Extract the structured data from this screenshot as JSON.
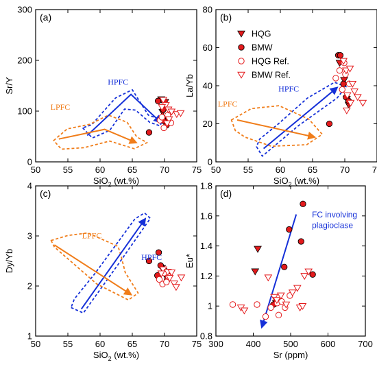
{
  "colors": {
    "red": "#e41a1c",
    "blue": "#1530d8",
    "orange": "#f07d1a",
    "axis": "#000000"
  },
  "legend": {
    "entries": [
      {
        "label": "HQG",
        "marker": "filled-down-triangle"
      },
      {
        "label": "BMW",
        "marker": "filled-circle"
      },
      {
        "label": "HQG Ref.",
        "marker": "open-circle"
      },
      {
        "label": "BMW Ref.",
        "marker": "open-down-triangle"
      }
    ]
  },
  "chart_data": [
    {
      "type": "scatter",
      "panel": "(a)",
      "xlabel": "SiO",
      "xlabel_sub": "2",
      "xlabel_tail": " (wt.%)",
      "ylabel": "Sr/Y",
      "xlim": [
        50,
        75
      ],
      "ylim": [
        0,
        300
      ],
      "xticks": [
        50,
        55,
        60,
        65,
        70,
        75
      ],
      "yticks": [
        0,
        100,
        200,
        300
      ],
      "series": [
        {
          "name": "HQG",
          "marker": "filled-down-triangle",
          "points": [
            [
              69.5,
              123
            ],
            [
              70.1,
              118
            ],
            [
              69.7,
              98
            ],
            [
              70.3,
              86
            ]
          ]
        },
        {
          "name": "BMW",
          "marker": "filled-circle",
          "points": [
            [
              67.6,
              58
            ],
            [
              69.0,
              120
            ],
            [
              69.8,
              103
            ],
            [
              70.0,
              80
            ],
            [
              70.3,
              72
            ],
            [
              70.6,
              86
            ]
          ]
        },
        {
          "name": "HQG Ref.",
          "marker": "open-circle",
          "points": [
            [
              69.3,
              82
            ],
            [
              69.9,
              67
            ],
            [
              70.5,
              92
            ],
            [
              71.0,
              77
            ],
            [
              69.6,
              88
            ]
          ]
        },
        {
          "name": "BMW Ref.",
          "marker": "open-down-triangle",
          "points": [
            [
              69.8,
              122
            ],
            [
              70.2,
              112
            ],
            [
              70.6,
              103
            ],
            [
              71.1,
              99
            ],
            [
              71.9,
              94
            ],
            [
              72.5,
              96
            ],
            [
              70.7,
              84
            ],
            [
              70.4,
              76
            ],
            [
              69.6,
              108
            ]
          ]
        }
      ],
      "annotations": [
        {
          "text": "HPFC",
          "x": 61.2,
          "y": 152,
          "color": "blue"
        },
        {
          "text": "LPFC",
          "x": 52.3,
          "y": 103,
          "color": "orange"
        }
      ],
      "arrows": [
        {
          "color": "blue",
          "path": [
            [
              58,
              52
            ],
            [
              64.8,
              133
            ],
            [
              69.4,
              78
            ]
          ]
        },
        {
          "color": "orange",
          "path": [
            [
              53.6,
              45
            ],
            [
              60.7,
              64
            ],
            [
              65.6,
              38
            ]
          ]
        }
      ],
      "envelopes": [
        {
          "color": "blue",
          "points": [
            [
              57.3,
              67
            ],
            [
              58.8,
              47
            ],
            [
              61.5,
              62
            ],
            [
              63.8,
              104
            ],
            [
              65.5,
              102
            ],
            [
              67.7,
              78
            ],
            [
              69.3,
              71
            ],
            [
              69.7,
              82
            ],
            [
              67.5,
              92
            ],
            [
              65,
              142
            ],
            [
              62.4,
              126
            ],
            [
              60.5,
              99
            ],
            [
              58.7,
              73
            ]
          ]
        },
        {
          "color": "orange",
          "points": [
            [
              52.8,
              42
            ],
            [
              54.9,
              65
            ],
            [
              58.4,
              74
            ],
            [
              61.3,
              92
            ],
            [
              64.2,
              78
            ],
            [
              65.7,
              49
            ],
            [
              67.3,
              38
            ],
            [
              65.3,
              26
            ],
            [
              61.5,
              41
            ],
            [
              57.5,
              28
            ],
            [
              54,
              25
            ]
          ]
        }
      ]
    },
    {
      "type": "scatter",
      "panel": "(b)",
      "xlabel": "SiO",
      "xlabel_sub": "2",
      "xlabel_tail": " (wt.%)",
      "ylabel": "La/Yb",
      "xlim": [
        50,
        75
      ],
      "ylim": [
        0,
        80
      ],
      "xticks": [
        50,
        55,
        60,
        65,
        70,
        75
      ],
      "yticks": [
        0,
        20,
        40,
        60,
        80
      ],
      "series": [
        {
          "name": "HQG",
          "marker": "filled-down-triangle",
          "points": [
            [
              69.2,
              52
            ],
            [
              69.9,
              43
            ],
            [
              70.3,
              33
            ],
            [
              70.6,
              30
            ]
          ]
        },
        {
          "name": "BMW",
          "marker": "filled-circle",
          "points": [
            [
              67.6,
              20
            ],
            [
              69.0,
              56
            ],
            [
              69.3,
              56
            ],
            [
              69.8,
              41
            ],
            [
              70.2,
              34
            ],
            [
              70.6,
              32
            ]
          ]
        },
        {
          "name": "HQG Ref.",
          "marker": "open-circle",
          "points": [
            [
              68.6,
              44
            ],
            [
              69.2,
              48
            ],
            [
              69.6,
              38
            ],
            [
              70.1,
              46
            ],
            [
              70.7,
              41
            ],
            [
              69.9,
              52
            ]
          ]
        },
        {
          "name": "BMW Ref.",
          "marker": "open-down-triangle",
          "points": [
            [
              69.8,
              53
            ],
            [
              70.2,
              48
            ],
            [
              70.8,
              49
            ],
            [
              71.2,
              41
            ],
            [
              71.5,
              37
            ],
            [
              70.4,
              35
            ],
            [
              70.9,
              31
            ],
            [
              70.3,
              27
            ],
            [
              72.0,
              34
            ],
            [
              72.8,
              31
            ]
          ]
        }
      ],
      "annotations": [
        {
          "text": "HPFC",
          "x": 59.7,
          "y": 37,
          "color": "blue"
        },
        {
          "text": "LPFC",
          "x": 50.3,
          "y": 29,
          "color": "orange"
        }
      ],
      "arrows": [
        {
          "color": "blue",
          "path": [
            [
              57.4,
              7
            ],
            [
              68.8,
              39
            ]
          ]
        },
        {
          "color": "orange",
          "path": [
            [
              53.3,
              22
            ],
            [
              65.3,
              13
            ]
          ]
        }
      ],
      "envelopes": [
        {
          "color": "blue",
          "points": [
            [
              56.3,
              8
            ],
            [
              57.2,
              3
            ],
            [
              62.8,
              19
            ],
            [
              68.8,
              33.5
            ],
            [
              70.2,
              39.5
            ],
            [
              68.4,
              41.8
            ],
            [
              64.2,
              33.5
            ],
            [
              59.7,
              20
            ],
            [
              56.8,
              12
            ]
          ]
        },
        {
          "color": "orange",
          "points": [
            [
              52.4,
              22
            ],
            [
              55.5,
              28
            ],
            [
              59.8,
              29.5
            ],
            [
              64.4,
              22.5
            ],
            [
              66.5,
              14.5
            ],
            [
              64.1,
              9
            ],
            [
              58.6,
              8.2
            ],
            [
              54.5,
              13
            ],
            [
              53,
              16.5
            ]
          ]
        }
      ]
    },
    {
      "type": "scatter",
      "panel": "(c)",
      "xlabel": "SiO",
      "xlabel_sub": "2",
      "xlabel_tail": " (wt.%)",
      "ylabel": "Dy/Yb",
      "xlim": [
        50,
        75
      ],
      "ylim": [
        1,
        4
      ],
      "xticks": [
        50,
        55,
        60,
        65,
        70,
        75
      ],
      "yticks": [
        1,
        2,
        3,
        4
      ],
      "series": [
        {
          "name": "HQG",
          "marker": "filled-down-triangle",
          "points": [
            [
              69.6,
              2.36
            ],
            [
              70.0,
              2.24
            ],
            [
              70.3,
              2.2
            ],
            [
              70.7,
              2.15
            ]
          ]
        },
        {
          "name": "BMW",
          "marker": "filled-circle",
          "points": [
            [
              67.6,
              2.5
            ],
            [
              69.1,
              2.67
            ],
            [
              69.4,
              2.41
            ],
            [
              68.9,
              2.21
            ],
            [
              70.1,
              2.3
            ],
            [
              70.4,
              2.12
            ]
          ]
        },
        {
          "name": "HQG Ref.",
          "marker": "open-circle",
          "points": [
            [
              69.2,
              2.13
            ],
            [
              69.7,
              2.04
            ],
            [
              70.0,
              2.26
            ],
            [
              70.6,
              2.19
            ],
            [
              70.3,
              2.08
            ]
          ]
        },
        {
          "name": "BMW Ref.",
          "marker": "open-down-triangle",
          "points": [
            [
              69.8,
              2.33
            ],
            [
              70.5,
              2.28
            ],
            [
              71.1,
              2.27
            ],
            [
              70.8,
              2.16
            ],
            [
              71.5,
              2.05
            ],
            [
              71.8,
              1.98
            ],
            [
              72.6,
              2.17
            ],
            [
              69.5,
              2.25
            ]
          ]
        }
      ],
      "annotations": [
        {
          "text": "HPFC",
          "x": 66.4,
          "y": 2.52,
          "color": "blue"
        },
        {
          "text": "LPFC",
          "x": 57.2,
          "y": 2.95,
          "color": "orange"
        }
      ],
      "arrows": [
        {
          "color": "blue",
          "path": [
            [
              57.1,
              1.54
            ],
            [
              67,
              3.34
            ]
          ]
        },
        {
          "color": "orange",
          "path": [
            [
              52.9,
              2.82
            ],
            [
              64.8,
              1.83
            ]
          ]
        }
      ],
      "envelopes": [
        {
          "color": "blue",
          "points": [
            [
              55.5,
              1.57
            ],
            [
              57.4,
              1.46
            ],
            [
              62.8,
              2.43
            ],
            [
              67.8,
              3.35
            ],
            [
              66.9,
              3.46
            ],
            [
              65.4,
              3.34
            ],
            [
              59.2,
              2.25
            ],
            [
              56,
              1.74
            ]
          ]
        },
        {
          "color": "orange",
          "points": [
            [
              52.4,
              2.91
            ],
            [
              55,
              3.01
            ],
            [
              58.1,
              3.06
            ],
            [
              62.8,
              2.79
            ],
            [
              63.3,
              2.58
            ],
            [
              63.9,
              2.27
            ],
            [
              65.9,
              1.86
            ],
            [
              64.4,
              1.72
            ],
            [
              59.5,
              2.04
            ],
            [
              52.9,
              2.78
            ]
          ]
        }
      ]
    },
    {
      "type": "scatter",
      "panel": "(d)",
      "xlabel": "Sr (ppm)",
      "ylabel": "Eu*",
      "xlim": [
        300,
        700
      ],
      "ylim": [
        0.8,
        1.8
      ],
      "xticks": [
        300,
        400,
        500,
        600,
        700
      ],
      "yticks": [
        0.8,
        1,
        1.2,
        1.4,
        1.6,
        1.8
      ],
      "series": [
        {
          "name": "HQG",
          "marker": "filled-down-triangle",
          "points": [
            [
              412,
              1.38
            ],
            [
              405,
              1.23
            ],
            [
              461,
              1.02
            ]
          ]
        },
        {
          "name": "BMW",
          "marker": "filled-circle",
          "points": [
            [
              454,
              1.01
            ],
            [
              483,
              1.26
            ],
            [
              496,
              1.51
            ],
            [
              528,
              1.43
            ],
            [
              533,
              1.68
            ],
            [
              559,
              1.21
            ]
          ]
        },
        {
          "name": "HQG Ref.",
          "marker": "open-circle",
          "points": [
            [
              345,
              1.01
            ],
            [
              410,
              1.01
            ],
            [
              433,
              0.93
            ],
            [
              447,
              0.99
            ],
            [
              464,
              1.02
            ],
            [
              468,
              0.94
            ],
            [
              485,
              0.99
            ],
            [
              498,
              1.07
            ],
            [
              476,
              1.03
            ]
          ]
        },
        {
          "name": "BMW Ref.",
          "marker": "open-down-triangle",
          "points": [
            [
              367,
              0.99
            ],
            [
              376,
              0.97
            ],
            [
              440,
              1.19
            ],
            [
              456,
              1.06
            ],
            [
              463,
              1.04
            ],
            [
              474,
              1.07
            ],
            [
              488,
              1.01
            ],
            [
              505,
              1.09
            ],
            [
              518,
              1.12
            ],
            [
              525,
              0.99
            ],
            [
              532,
              1.0
            ],
            [
              537,
              1.2
            ],
            [
              548,
              1.23
            ]
          ]
        }
      ],
      "annotations": [
        {
          "text": "FC involving",
          "x": 557,
          "y": 1.59,
          "color": "blue"
        },
        {
          "text": "plagioclase",
          "x": 557,
          "y": 1.52,
          "color": "blue"
        }
      ],
      "arrows": [
        {
          "color": "blue",
          "path": [
            [
              515,
              1.61
            ],
            [
              423,
              0.86
            ]
          ]
        }
      ],
      "envelopes": []
    }
  ]
}
